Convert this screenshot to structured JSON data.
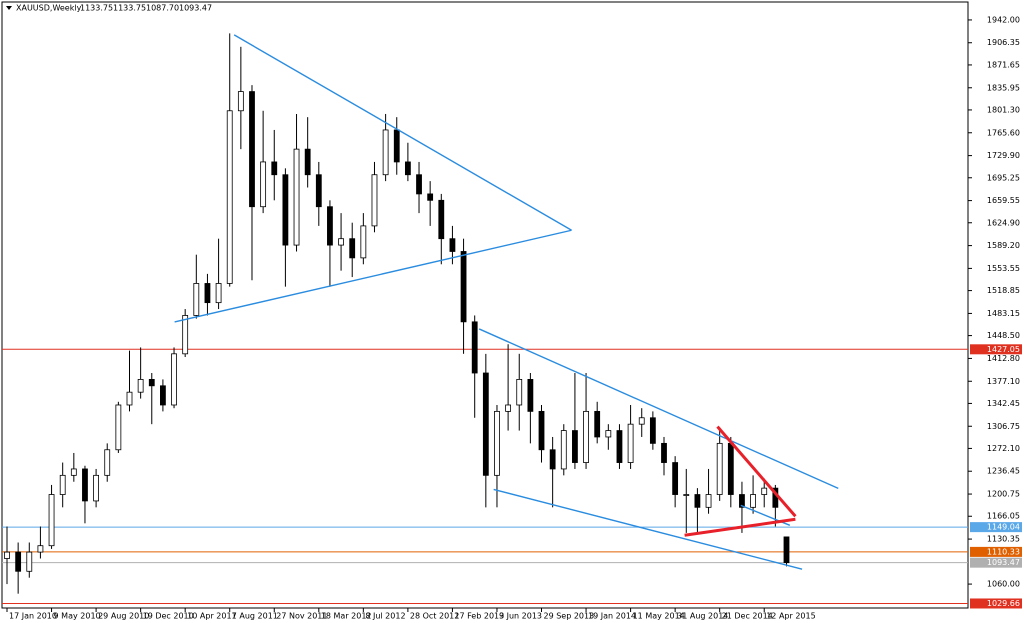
{
  "chart_data": {
    "type": "candlestick",
    "title": "XAUUSD,Weekly",
    "header_labels": [
      "1133.75",
      "1133.75",
      "1087.70",
      "1093.47"
    ],
    "xlim": [
      -0.45,
      86.3
    ],
    "ylim": [
      1022.6,
      1970.05
    ],
    "up_color": "#ffffff",
    "down_color": "#000000",
    "wick_color": "#000000",
    "candles": [
      [
        1100,
        1150,
        1060,
        1110
      ],
      [
        1110,
        1125,
        1045,
        1080
      ],
      [
        1080,
        1125,
        1070,
        1110
      ],
      [
        1110,
        1150,
        1100,
        1120
      ],
      [
        1120,
        1215,
        1115,
        1200
      ],
      [
        1200,
        1250,
        1180,
        1230
      ],
      [
        1230,
        1265,
        1220,
        1240
      ],
      [
        1240,
        1245,
        1155,
        1190
      ],
      [
        1190,
        1240,
        1180,
        1230
      ],
      [
        1230,
        1280,
        1220,
        1270
      ],
      [
        1270,
        1345,
        1265,
        1340
      ],
      [
        1340,
        1425,
        1330,
        1360
      ],
      [
        1360,
        1430,
        1350,
        1380
      ],
      [
        1380,
        1390,
        1310,
        1370
      ],
      [
        1370,
        1380,
        1330,
        1340
      ],
      [
        1340,
        1430,
        1335,
        1420
      ],
      [
        1420,
        1490,
        1415,
        1480
      ],
      [
        1480,
        1575,
        1475,
        1530
      ],
      [
        1530,
        1545,
        1480,
        1500
      ],
      [
        1500,
        1600,
        1490,
        1530
      ],
      [
        1530,
        1921,
        1525,
        1800
      ],
      [
        1800,
        1900,
        1740,
        1830
      ],
      [
        1830,
        1840,
        1535,
        1650
      ],
      [
        1650,
        1800,
        1640,
        1720
      ],
      [
        1720,
        1770,
        1660,
        1700
      ],
      [
        1700,
        1710,
        1525,
        1590
      ],
      [
        1590,
        1795,
        1580,
        1740
      ],
      [
        1740,
        1790,
        1680,
        1700
      ],
      [
        1700,
        1720,
        1620,
        1650
      ],
      [
        1650,
        1660,
        1525,
        1590
      ],
      [
        1590,
        1640,
        1550,
        1600
      ],
      [
        1600,
        1625,
        1540,
        1570
      ],
      [
        1570,
        1640,
        1560,
        1620
      ],
      [
        1620,
        1720,
        1610,
        1700
      ],
      [
        1700,
        1795,
        1690,
        1770
      ],
      [
        1770,
        1790,
        1700,
        1720
      ],
      [
        1720,
        1750,
        1690,
        1700
      ],
      [
        1700,
        1720,
        1640,
        1670
      ],
      [
        1670,
        1690,
        1620,
        1660
      ],
      [
        1660,
        1670,
        1560,
        1600
      ],
      [
        1600,
        1620,
        1560,
        1580
      ],
      [
        1580,
        1600,
        1420,
        1470
      ],
      [
        1470,
        1480,
        1320,
        1390
      ],
      [
        1390,
        1420,
        1180,
        1230
      ],
      [
        1230,
        1340,
        1180,
        1330
      ],
      [
        1330,
        1435,
        1300,
        1340
      ],
      [
        1340,
        1420,
        1300,
        1380
      ],
      [
        1380,
        1390,
        1280,
        1330
      ],
      [
        1330,
        1340,
        1250,
        1270
      ],
      [
        1270,
        1290,
        1180,
        1240
      ],
      [
        1240,
        1310,
        1230,
        1300
      ],
      [
        1300,
        1390,
        1240,
        1250
      ],
      [
        1250,
        1390,
        1240,
        1330
      ],
      [
        1330,
        1345,
        1280,
        1290
      ],
      [
        1290,
        1310,
        1270,
        1300
      ],
      [
        1300,
        1310,
        1240,
        1250
      ],
      [
        1250,
        1340,
        1240,
        1310
      ],
      [
        1310,
        1335,
        1290,
        1320
      ],
      [
        1320,
        1330,
        1270,
        1280
      ],
      [
        1280,
        1290,
        1230,
        1250
      ],
      [
        1250,
        1260,
        1180,
        1200
      ],
      [
        1200,
        1240,
        1140,
        1200
      ],
      [
        1200,
        1210,
        1140,
        1180
      ],
      [
        1180,
        1240,
        1170,
        1200
      ],
      [
        1200,
        1305,
        1190,
        1280
      ],
      [
        1280,
        1290,
        1180,
        1200
      ],
      [
        1200,
        1220,
        1140,
        1180
      ],
      [
        1180,
        1230,
        1170,
        1200
      ],
      [
        1200,
        1225,
        1180,
        1210
      ],
      [
        1210,
        1215,
        1150,
        1180
      ],
      [
        1133.75,
        1133.75,
        1087.7,
        1093.47
      ]
    ],
    "xticks": [
      {
        "value": 0,
        "label": "17 Jan 2010"
      },
      {
        "value": 4,
        "label": "9 May 2010"
      },
      {
        "value": 8,
        "label": "29 Aug 2010"
      },
      {
        "value": 12,
        "label": "19 Dec 2010"
      },
      {
        "value": 16,
        "label": "10 Apr 2011"
      },
      {
        "value": 20,
        "label": "7 Aug 2011"
      },
      {
        "value": 24,
        "label": "27 Nov 2011"
      },
      {
        "value": 28,
        "label": "18 Mar 2012"
      },
      {
        "value": 32,
        "label": "8 Jul 2012"
      },
      {
        "value": 36,
        "label": "28 Oct 2012"
      },
      {
        "value": 40,
        "label": "17 Feb 2013"
      },
      {
        "value": 44,
        "label": "9 Jun 2013"
      },
      {
        "value": 48,
        "label": "29 Sep 2013"
      },
      {
        "value": 52,
        "label": "19 Jan 2014"
      },
      {
        "value": 56,
        "label": "11 May 2014"
      },
      {
        "value": 60,
        "label": "31 Aug 2014"
      },
      {
        "value": 64,
        "label": "21 Dec 2014"
      },
      {
        "value": 68,
        "label": "12 Apr 2015"
      }
    ],
    "yticks": [
      {
        "value": 1942,
        "label": "1942.00"
      },
      {
        "value": 1906.35,
        "label": "1906.35"
      },
      {
        "value": 1871.65,
        "label": "1871.65"
      },
      {
        "value": 1835.95,
        "label": "1835.95"
      },
      {
        "value": 1801.3,
        "label": "1801.30"
      },
      {
        "value": 1765.6,
        "label": "1765.60"
      },
      {
        "value": 1729.9,
        "label": "1729.90"
      },
      {
        "value": 1695.25,
        "label": "1695.25"
      },
      {
        "value": 1659.55,
        "label": "1659.55"
      },
      {
        "value": 1624.9,
        "label": "1624.90"
      },
      {
        "value": 1589.2,
        "label": "1589.20"
      },
      {
        "value": 1553.55,
        "label": "1553.55"
      },
      {
        "value": 1518.85,
        "label": "1518.85"
      },
      {
        "value": 1483.15,
        "label": "1483.15"
      },
      {
        "value": 1448.5,
        "label": "1448.50"
      },
      {
        "value": 1412.8,
        "label": "1412.80"
      },
      {
        "value": 1377.1,
        "label": "1377.10"
      },
      {
        "value": 1342.45,
        "label": "1342.45"
      },
      {
        "value": 1306.75,
        "label": "1306.75"
      },
      {
        "value": 1272.1,
        "label": "1272.10"
      },
      {
        "value": 1236.45,
        "label": "1236.45"
      },
      {
        "value": 1200.75,
        "label": "1200.75"
      },
      {
        "value": 1166.05,
        "label": "1166.05"
      },
      {
        "value": 1130.35,
        "label": "1130.35"
      },
      {
        "value": 1060,
        "label": "1060.00"
      }
    ],
    "levels": [
      {
        "value": 1427.05,
        "color": "#e03020"
      },
      {
        "value": 1149.04,
        "color": "#5aa8e8"
      },
      {
        "value": 1110.33,
        "color": "#e06000"
      },
      {
        "value": 1093.47,
        "color": "#b0b0b0"
      },
      {
        "value": 1029.66,
        "color": "#e03020"
      }
    ],
    "trendlines": [
      {
        "color": "#2a8ce0",
        "x": [
          20.4,
          50.7
        ],
        "y": [
          1918.6,
          1613.2
        ]
      },
      {
        "color": "#2a8ce0",
        "x": [
          15.05,
          50.7
        ],
        "y": [
          1469.8,
          1613.2
        ]
      },
      {
        "color": "#2a8ce0",
        "x": [
          42.4,
          74.65
        ],
        "y": [
          1458.9,
          1209.6
        ]
      },
      {
        "color": "#2a8ce0",
        "x": [
          43.7,
          71.4
        ],
        "y": [
          1208.0,
          1083.3
        ]
      },
      {
        "color": "#2a8ce0",
        "x": [
          65.9,
          70.3
        ],
        "y": [
          1183.1,
          1151.9
        ]
      },
      {
        "color": "#e8202a",
        "x": [
          63.8,
          70.8
        ],
        "y": [
          1306.2,
          1166.0
        ]
      },
      {
        "color": "#e8202a",
        "x": [
          60.85,
          70.8
        ],
        "y": [
          1136.3,
          1161.3
        ]
      }
    ]
  }
}
